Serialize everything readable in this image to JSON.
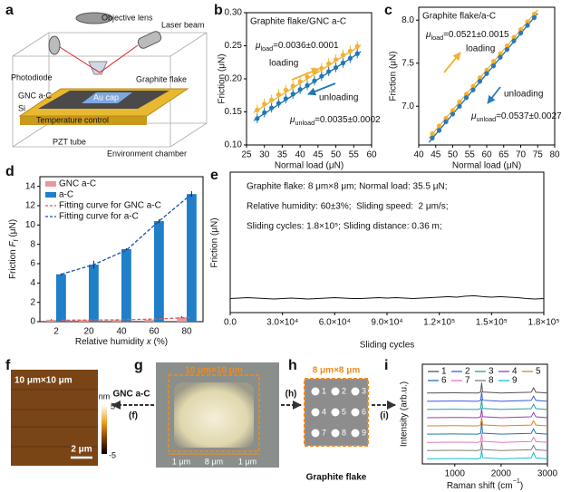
{
  "panel_labels": [
    "a",
    "b",
    "c",
    "d",
    "e",
    "f",
    "g",
    "h",
    "i"
  ],
  "schematic": {
    "labels": [
      "Objective lens",
      "Laser beam",
      "Photodiode",
      "GNC a-C",
      "Graphite flake",
      "Au cap",
      "Si",
      "Temperature control",
      "PZT tube",
      "Environment chamber"
    ]
  },
  "afm": {
    "size": "10 μm×10 μm",
    "scale_bar": "2 μm",
    "colorbar": {
      "unit": "nm",
      "max": 5,
      "min": -5
    }
  },
  "optical": {
    "size": "10 μm×10 μm",
    "dims": [
      "1 μm",
      "8 μm",
      "1 μm"
    ],
    "arrow_left": "GNC a-C",
    "ref_left": "(f)",
    "ref_right": "(h)"
  },
  "pattern": {
    "size": "8 μm×8 μm",
    "points": [
      1,
      2,
      3,
      4,
      5,
      6,
      7,
      8,
      9
    ],
    "caption": "Graphite flake",
    "ref": "(i)"
  },
  "chart_data": [
    {
      "type": "scatter",
      "title": "Graphite flake/GNC a-C",
      "xlabel": "Normal load (μN)",
      "ylabel": "Friction (μN)",
      "xlim": [
        25,
        60
      ],
      "xticks": [
        25,
        30,
        35,
        40,
        45,
        50,
        55,
        60
      ],
      "ylim": [
        0.1,
        0.3
      ],
      "yticks": [
        {
          "value": 0.1,
          "label": "0.10"
        },
        0.15,
        {
          "value": 0.2,
          "label": "0.20"
        },
        0.25,
        {
          "value": 0.3,
          "label": "0.30"
        }
      ],
      "x": [
        28,
        30,
        32,
        34,
        36,
        38,
        40,
        42,
        44,
        46,
        48,
        50,
        52,
        54,
        56
      ],
      "series": [
        {
          "name": "loading",
          "color": "#f2b134",
          "values": [
            0.153,
            0.162,
            0.168,
            0.176,
            0.183,
            0.189,
            0.196,
            0.203,
            0.21,
            0.216,
            0.223,
            0.229,
            0.236,
            0.242,
            0.249
          ],
          "errors": [
            0.008,
            0.008,
            0.008,
            0.008,
            0.008,
            0.008,
            0.008,
            0.008,
            0.008,
            0.008,
            0.008,
            0.008,
            0.008,
            0.008,
            0.008
          ]
        },
        {
          "name": "unloading",
          "color": "#1f77b4",
          "values": [
            0.14,
            0.149,
            0.156,
            0.163,
            0.17,
            0.177,
            0.184,
            0.19,
            0.197,
            0.204,
            0.211,
            0.217,
            0.224,
            0.231,
            0.238
          ],
          "errors": [
            0.007,
            0.007,
            0.007,
            0.007,
            0.007,
            0.007,
            0.007,
            0.007,
            0.007,
            0.007,
            0.007,
            0.007,
            0.007,
            0.007,
            0.007
          ]
        }
      ],
      "fits": [
        {
          "color": "#f2b134",
          "x": [
            27,
            57
          ],
          "values": [
            0.149,
            0.251
          ]
        },
        {
          "color": "#1f6fa8",
          "x": [
            27,
            57
          ],
          "values": [
            0.137,
            0.241
          ]
        }
      ],
      "annotations": [
        [
          {
            "text": "μ",
            "style": "italic"
          },
          {
            "text": "load",
            "style": "sub"
          },
          "=0.0036±0.0001"
        ],
        [
          {
            "text": "μ",
            "style": "italic"
          },
          {
            "text": "unload",
            "style": "sub"
          },
          "=0.0035±0.0002"
        ]
      ]
    },
    {
      "type": "scatter",
      "title": "Graphite flake/a-C",
      "xlabel": "Normal load (μN)",
      "ylabel": "Friction (μN)",
      "xlim": [
        40,
        80
      ],
      "xticks": [
        40,
        45,
        50,
        55,
        60,
        65,
        70,
        75,
        80
      ],
      "ylim": [
        6.55,
        8.15
      ],
      "yticks": [
        {
          "value": 7,
          "label": "7.0"
        },
        7.5,
        {
          "value": 8,
          "label": "8.0"
        }
      ],
      "x": [
        44,
        46,
        48,
        50,
        52,
        54,
        56,
        58,
        60,
        62,
        64,
        66,
        68,
        70,
        72,
        74
      ],
      "series": [
        {
          "name": "loading",
          "color": "#f2b134",
          "values": [
            6.68,
            6.77,
            6.86,
            6.95,
            7.05,
            7.14,
            7.23,
            7.33,
            7.42,
            7.52,
            7.61,
            7.7,
            7.8,
            7.89,
            7.98,
            8.07
          ],
          "errors": [
            0.03,
            0.03,
            0.03,
            0.03,
            0.03,
            0.03,
            0.03,
            0.03,
            0.03,
            0.03,
            0.03,
            0.03,
            0.03,
            0.03,
            0.03,
            0.03
          ]
        },
        {
          "name": "unloading",
          "color": "#2a7ab8",
          "values": [
            6.63,
            6.72,
            6.82,
            6.91,
            7.0,
            7.1,
            7.19,
            7.29,
            7.38,
            7.47,
            7.57,
            7.66,
            7.76,
            7.85,
            7.94,
            8.03
          ],
          "errors": [
            0.03,
            0.03,
            0.03,
            0.03,
            0.03,
            0.03,
            0.03,
            0.03,
            0.03,
            0.03,
            0.03,
            0.03,
            0.03,
            0.03,
            0.03,
            0.03
          ]
        }
      ],
      "fits": [
        {
          "color": "#f2b134",
          "x": [
            43,
            75
          ],
          "values": [
            6.63,
            8.12
          ]
        },
        {
          "color": "#1f6fa8",
          "x": [
            43,
            75
          ],
          "values": [
            6.58,
            8.08
          ]
        }
      ],
      "annotations": [
        [
          {
            "text": "μ",
            "style": "italic"
          },
          {
            "text": "load",
            "style": "sub"
          },
          "=0.0521±0.0015"
        ],
        [
          {
            "text": "μ",
            "style": "italic"
          },
          {
            "text": "unload",
            "style": "sub"
          },
          "=0.0537±0.0027"
        ]
      ]
    },
    {
      "type": "bar",
      "xlabel": [
        "Relative humidity ",
        {
          "text": "x",
          "style": "italic"
        },
        " (%)"
      ],
      "ylabel": [
        "Friction ",
        {
          "text": "F",
          "style": "italic"
        },
        {
          "text": "f",
          "style": "sub"
        },
        " (μN)"
      ],
      "categories": [
        "2",
        "20",
        "40",
        "60",
        "80"
      ],
      "ylim": [
        0,
        15
      ],
      "yticks": [
        0,
        2,
        4,
        6,
        8,
        10,
        12,
        14
      ],
      "legend": "upper left",
      "series": [
        {
          "name": "GNC a-C",
          "mark": "bar",
          "color": "#e79a9a",
          "values": [
            0.2,
            0.15,
            0.15,
            0.2,
            0.45
          ],
          "errors": [
            0.05,
            0.05,
            0.05,
            0.05,
            0.1
          ]
        },
        {
          "name": "a-C",
          "mark": "bar",
          "color": "#1f7fc9",
          "values": [
            4.9,
            5.9,
            7.5,
            10.4,
            13.2
          ],
          "errors": [
            0.1,
            0.4,
            0.1,
            0.2,
            0.3
          ]
        },
        {
          "name": "Fitting curve for GNC a-C",
          "mark": "dashed-line",
          "color": "#e05a5a",
          "values": [
            0.15,
            0.17,
            0.2,
            0.28,
            0.45
          ]
        },
        {
          "name": "Fitting curve for a-C",
          "mark": "dashed-line",
          "color": "#1a50b0",
          "values": [
            4.9,
            5.9,
            7.4,
            10.4,
            13.2
          ]
        }
      ]
    },
    {
      "type": "line",
      "xlabel": "Sliding cycles",
      "ylabel": "Friction (μN)",
      "color": "#111",
      "xlim": [
        0,
        180000
      ],
      "xticks": [
        {
          "value": 0,
          "label": "0.0"
        },
        {
          "value": 30000,
          "label": "3.0×10⁴"
        },
        {
          "value": 60000,
          "label": "6.0×10⁴"
        },
        {
          "value": 90000,
          "label": "9.0×10⁴"
        },
        {
          "value": 120000,
          "label": "1.2×10⁵"
        },
        {
          "value": 150000,
          "label": "1.5×10⁵"
        },
        {
          "value": 180000,
          "label": "1.8×10⁵"
        }
      ],
      "ylim": [
        0,
        3
      ],
      "x": [
        0,
        5000,
        10000,
        15000,
        20000,
        25000,
        30000,
        35000,
        40000,
        45000,
        50000,
        55000,
        60000,
        65000,
        70000,
        75000,
        80000,
        85000,
        90000,
        95000,
        100000,
        105000,
        110000,
        115000,
        120000,
        125000,
        130000,
        135000,
        140000,
        145000,
        150000,
        155000,
        160000,
        165000,
        170000,
        175000,
        180000
      ],
      "values": [
        0.3,
        0.31,
        0.32,
        0.31,
        0.3,
        0.29,
        0.3,
        0.31,
        0.3,
        0.29,
        0.3,
        0.31,
        0.32,
        0.31,
        0.3,
        0.3,
        0.31,
        0.32,
        0.31,
        0.32,
        0.31,
        0.3,
        0.31,
        0.32,
        0.33,
        0.34,
        0.33,
        0.35,
        0.36,
        0.34,
        0.33,
        0.34,
        0.33,
        0.32,
        0.3,
        0.29,
        0.3
      ],
      "annotations": [
        "Graphite flake: 8 μm×8 μm; Normal load: 35.5 μN;",
        "Relative humidity: 60±3%;  Sliding speed:  2 μm/s;",
        "Sliding cycles: 1.8×10⁵; Sliding distance: 0.36 m;"
      ]
    },
    {
      "type": "line",
      "xlabel": [
        "Raman shift (cm",
        {
          "text": "−1",
          "style": "sup"
        },
        ")"
      ],
      "ylabel": "Intensity (arb.u.)",
      "xlim": [
        300,
        3000
      ],
      "xticks": [
        1000,
        2000,
        3000
      ],
      "ylim": [
        1.5,
        11.2
      ],
      "legend": "upper left",
      "x": [
        400,
        1000,
        1500,
        1560,
        1580,
        1600,
        2000,
        2650,
        2700,
        2750,
        3000
      ],
      "series": [
        {
          "name": "1",
          "color": "#555555",
          "values": [
            8.4,
            8.42,
            8.4,
            8.5,
            9.4,
            8.5,
            8.4,
            8.48,
            8.9,
            8.48,
            8.4
          ]
        },
        {
          "name": "2",
          "color": "#3b5bdb",
          "values": [
            7.6,
            7.62,
            7.6,
            7.7,
            8.5,
            7.7,
            7.6,
            7.68,
            8.1,
            7.68,
            7.6
          ]
        },
        {
          "name": "3",
          "color": "#20a39e",
          "values": [
            6.8,
            6.82,
            6.8,
            6.9,
            7.8,
            6.9,
            6.8,
            6.88,
            7.3,
            6.88,
            6.8
          ]
        },
        {
          "name": "4",
          "color": "#8e44ad",
          "values": [
            6.0,
            6.02,
            6.0,
            6.1,
            6.9,
            6.1,
            6.0,
            6.08,
            6.5,
            6.08,
            6.0
          ]
        },
        {
          "name": "5",
          "color": "#e67e22",
          "values": [
            5.2,
            5.22,
            5.2,
            5.3,
            6.1,
            5.3,
            5.2,
            5.28,
            5.7,
            5.28,
            5.2
          ]
        },
        {
          "name": "6",
          "color": "#1f77b4",
          "values": [
            4.4,
            4.42,
            4.4,
            4.5,
            5.6,
            4.5,
            4.4,
            4.48,
            4.9,
            4.48,
            4.4
          ]
        },
        {
          "name": "7",
          "color": "#e377c2",
          "values": [
            3.6,
            3.62,
            3.6,
            3.7,
            4.5,
            3.7,
            3.6,
            3.68,
            4.1,
            3.68,
            3.6
          ]
        },
        {
          "name": "8",
          "color": "#7f7f7f",
          "values": [
            2.8,
            2.82,
            2.8,
            2.9,
            3.7,
            2.9,
            2.8,
            2.88,
            3.3,
            2.88,
            2.8
          ]
        },
        {
          "name": "9",
          "color": "#17becf",
          "values": [
            2.0,
            2.02,
            2.0,
            2.1,
            2.9,
            2.1,
            2.0,
            2.08,
            2.6,
            2.08,
            2.0
          ]
        }
      ]
    }
  ]
}
